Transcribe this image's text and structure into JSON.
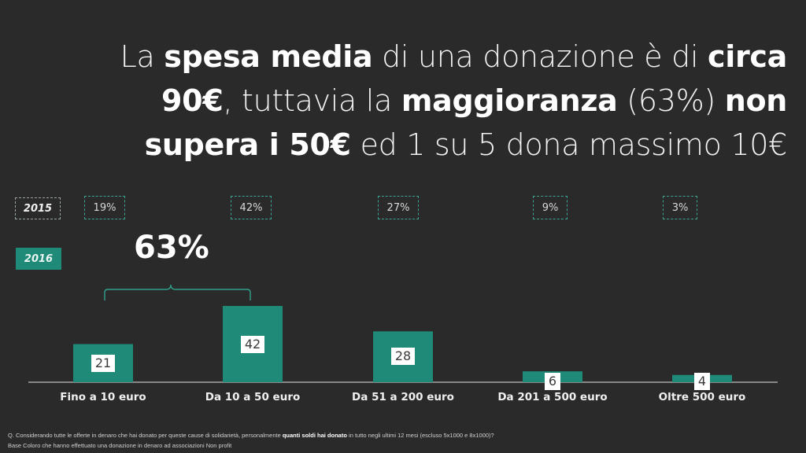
{
  "headline": {
    "line1_a": "La ",
    "line1_b": "spesa media",
    "line1_c": " di una donazione è di ",
    "line1_d": "circa",
    "line2_a": "90€",
    "line2_b": ", tuttavia la ",
    "line2_c": "maggioranza",
    "line2_d": " (63%) ",
    "line2_e": "non",
    "line3_a": "supera i 50€",
    "line3_b": " ed 1 su 5 dona massimo 10€"
  },
  "legend": {
    "year_2015": "2015",
    "year_2016": "2016"
  },
  "bracket_label": "63%",
  "chart_data": {
    "type": "bar",
    "categories": [
      "Fino a 10 euro",
      "Da 10 a 50 euro",
      "Da 51 a 200 euro",
      "Da 201 a 500 euro",
      "Oltre 500 euro"
    ],
    "series": [
      {
        "name": "2016",
        "values": [
          21,
          42,
          28,
          6,
          4
        ],
        "color": "#1f8a77"
      },
      {
        "name": "2015",
        "values": [
          19,
          42,
          27,
          9,
          3
        ],
        "labels": [
          "19%",
          "42%",
          "27%",
          "9%",
          "3%"
        ]
      }
    ],
    "annotation": "63%",
    "ylim": [
      0,
      45
    ]
  },
  "footnote": {
    "q_a": "Q. Considerando tutte le offerte in denaro che hai donato per queste cause di solidarietà, personalmente ",
    "q_b": "quanti soldi hai donato",
    "q_c": " in tutto negli ultimi 12 mesi (escluso 5x1000 e 8x1000)?",
    "base": "Base Coloro che hanno effettuato una donazione in denaro ad associazioni Non profit"
  },
  "colors": {
    "background": "#2a2a2a",
    "bar": "#1f8a77",
    "dashed_border": "#3fa391"
  }
}
